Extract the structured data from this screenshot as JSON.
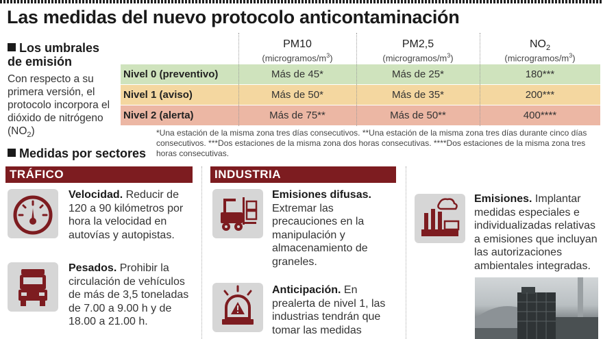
{
  "title": "Las medidas del nuevo protocolo anticontaminación",
  "umbrales": {
    "heading": "Los umbrales de emisión",
    "intro_parts": [
      "Con respecto a su primera versión, el protocolo incorpora el dióxido de nitrógeno (NO",
      "2",
      ")"
    ]
  },
  "table": {
    "columns": [
      {
        "name": "PM10",
        "name_sub": "",
        "unit": "(microgramos/m",
        "unit_sup": "3",
        "unit_end": ")"
      },
      {
        "name": "PM2,5",
        "name_sub": "",
        "unit": "(microgramos/m",
        "unit_sup": "3",
        "unit_end": ")"
      },
      {
        "name": "NO",
        "name_sub": "2",
        "unit": "(microgramos/m",
        "unit_sup": "3",
        "unit_end": ")"
      }
    ],
    "rows": [
      {
        "label": "Nivel 0 (preventivo)",
        "values": [
          "Más de 45*",
          "Más de 25*",
          "180***"
        ],
        "color": "#cfe3bd"
      },
      {
        "label": "Nivel 1 (aviso)",
        "values": [
          "Más de 50*",
          "Más de 35*",
          "200***"
        ],
        "color": "#f4d7a0"
      },
      {
        "label": "Nivel 2 (alerta)",
        "values": [
          "Más de 75**",
          "Más de 50**",
          "400****"
        ],
        "color": "#ecb7a4"
      }
    ],
    "footnote": "*Una estación de la misma zona tres días consecutivos. **Una estación de la misma zona tres días durante cinco días consecutivos. ***Dos estaciones de la misma zona dos horas consecutivas. ****Dos estaciones de la misma zona tres horas consecutivas."
  },
  "sectores": {
    "heading": "Medidas por sectores",
    "band_color": "#7d1c20",
    "icon_color": "#7d1c20",
    "trafico": {
      "band": "TRÁFICO",
      "items": [
        {
          "icon": "speedometer-icon",
          "bold": "Velocidad.",
          "text": " Reducir de 120 a 90 kilómetros por hora la velocidad en autovías y autopistas."
        },
        {
          "icon": "truck-icon",
          "bold": "Pesados.",
          "text": " Prohibir la circulación de vehículos de más de 3,5 toneladas de 7.00 a 9.00 h y de 18.00 a 21.00 h."
        }
      ]
    },
    "industria": {
      "band": "INDUSTRIA",
      "items": [
        {
          "icon": "forklift-icon",
          "bold": "Emisiones difusas.",
          "text": " Extremar las precauciones en la manipulación y almacenamiento de graneles."
        },
        {
          "icon": "alarm-light-icon",
          "bold": "Anticipación.",
          "text": " En prealerta de nivel 1, las industrias tendrán que tomar las medidas"
        }
      ]
    },
    "emisiones": {
      "icon": "factory-icon",
      "bold": "Emisiones.",
      "text": " Implantar medidas especiales e individualizadas relativas a emisiones que incluyan las autorizaciones ambientales integradas."
    }
  }
}
